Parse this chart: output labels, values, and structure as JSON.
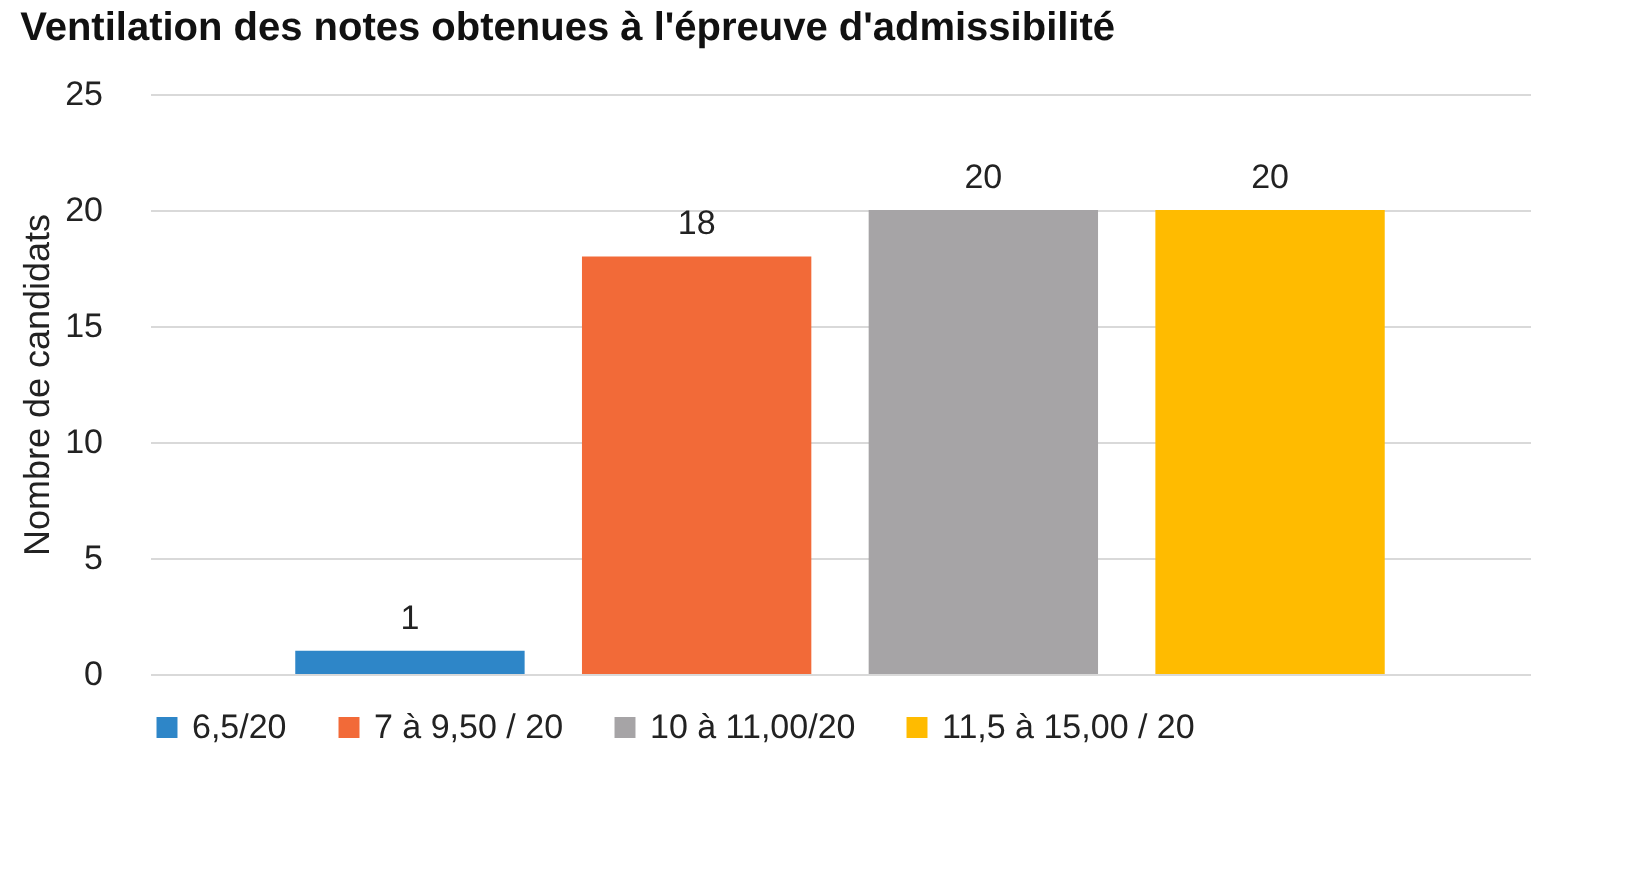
{
  "chart_data": {
    "type": "bar",
    "title": "Ventilation des notes obtenues à l'épreuve d'admissibilité",
    "ylabel": "Nombre de candidats",
    "categories": [
      null
    ],
    "series": [
      {
        "name": "6,5/20",
        "color": "#2e86c8",
        "values": [
          1
        ]
      },
      {
        "name": "7 à 9,50 / 20",
        "color": "#f26a38",
        "values": [
          18
        ]
      },
      {
        "name": "10 à 11,00/20",
        "color": "#a6a4a6",
        "values": [
          20
        ]
      },
      {
        "name": "11,5 à 15,00 / 20",
        "color": "#ffbb00",
        "values": [
          20
        ]
      }
    ],
    "ylim": [
      0,
      25
    ],
    "yticks": [
      0,
      5,
      10,
      15,
      20,
      25
    ],
    "grid": "y",
    "legend": "bottom",
    "data_labels": true,
    "tick_labels": "y"
  }
}
